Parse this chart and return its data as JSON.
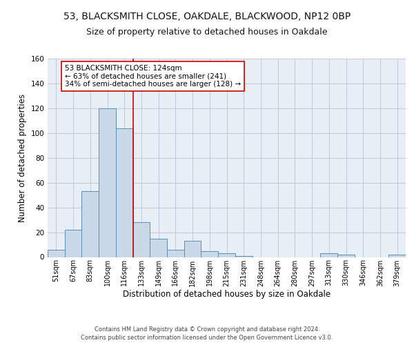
{
  "title1": "53, BLACKSMITH CLOSE, OAKDALE, BLACKWOOD, NP12 0BP",
  "title2": "Size of property relative to detached houses in Oakdale",
  "xlabel": "Distribution of detached houses by size in Oakdale",
  "ylabel": "Number of detached properties",
  "bar_labels": [
    "51sqm",
    "67sqm",
    "83sqm",
    "100sqm",
    "116sqm",
    "133sqm",
    "149sqm",
    "166sqm",
    "182sqm",
    "198sqm",
    "215sqm",
    "231sqm",
    "248sqm",
    "264sqm",
    "280sqm",
    "297sqm",
    "313sqm",
    "330sqm",
    "346sqm",
    "362sqm",
    "379sqm"
  ],
  "bar_values": [
    6,
    22,
    53,
    120,
    104,
    28,
    15,
    6,
    13,
    5,
    3,
    1,
    0,
    0,
    0,
    0,
    3,
    2,
    0,
    0,
    2
  ],
  "bar_color": "#c9d9e8",
  "bar_edge_color": "#5b8db8",
  "vline_x": 4.5,
  "vline_color": "#cc0000",
  "annotation_text": "53 BLACKSMITH CLOSE: 124sqm\n← 63% of detached houses are smaller (241)\n34% of semi-detached houses are larger (128) →",
  "annotation_box_color": "#ffffff",
  "annotation_box_edge": "#cc0000",
  "ylim": [
    0,
    160
  ],
  "yticks": [
    0,
    20,
    40,
    60,
    80,
    100,
    120,
    140,
    160
  ],
  "grid_color": "#c0c8d8",
  "bg_color": "#e8eef5",
  "footer": "Contains HM Land Registry data © Crown copyright and database right 2024.\nContains public sector information licensed under the Open Government Licence v3.0.",
  "title1_fontsize": 10,
  "title2_fontsize": 9,
  "xlabel_fontsize": 8.5,
  "ylabel_fontsize": 8.5,
  "annotation_fontsize": 7.5,
  "footer_fontsize": 6.0
}
